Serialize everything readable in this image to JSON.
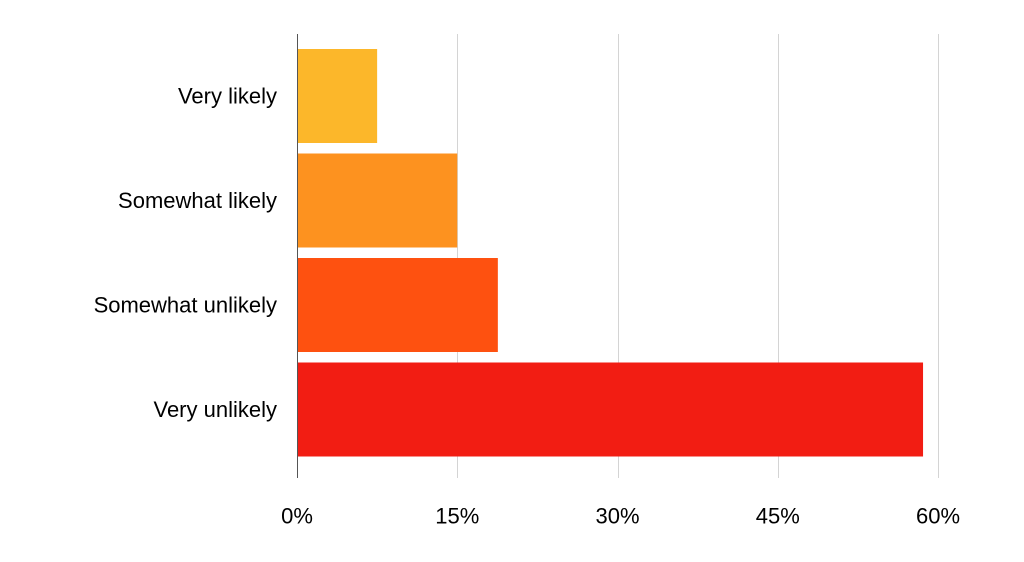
{
  "chart_data": {
    "type": "bar",
    "orientation": "horizontal",
    "title": "",
    "xlabel": "",
    "ylabel": "",
    "categories": [
      "Very likely",
      "Somewhat likely",
      "Somewhat unlikely",
      "Very unlikely"
    ],
    "values": [
      7.5,
      15,
      18.8,
      58.6
    ],
    "value_unit": "%",
    "bar_colors": [
      "#FCB72A",
      "#FD921F",
      "#FE5110",
      "#F21D13"
    ],
    "xlim": [
      0,
      60
    ],
    "x_ticks": [
      0,
      15,
      30,
      45,
      60
    ],
    "x_tick_labels": [
      "0%",
      "15%",
      "30%",
      "45%",
      "60%"
    ],
    "grid": "vertical",
    "legend": "none"
  }
}
